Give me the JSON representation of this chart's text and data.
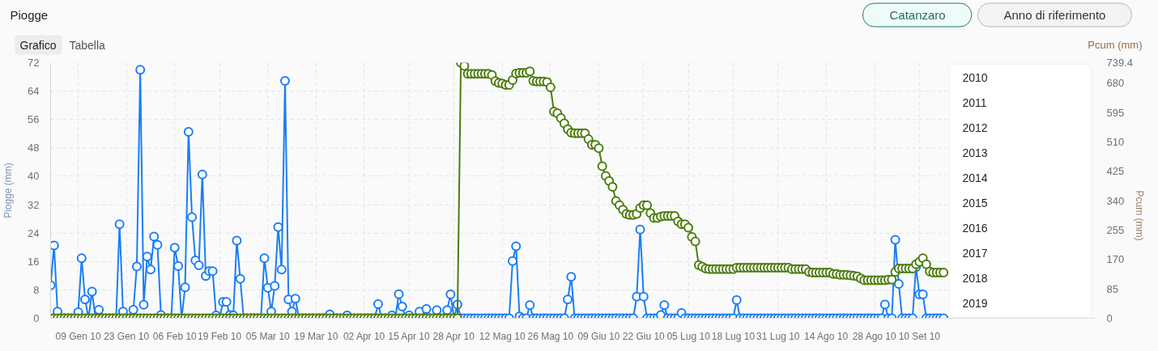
{
  "chart_data": {
    "type": "line",
    "title": "Piogge",
    "ylabel": "Piogge (mm)",
    "y2label": "Pcum (mm)",
    "annotations": [
      "Grafico",
      "Tabella",
      "Catanzaro",
      "Anno di riferimento",
      "2010",
      "2011",
      "2012",
      "2013",
      "2014",
      "2015",
      "2016",
      "2017",
      "2018",
      "2019",
      "Pcum (mm)"
    ],
    "categories": [
      null,
      null,
      null,
      null,
      null,
      null,
      null,
      null,
      "09 Gen 10",
      null,
      null,
      null,
      null,
      null,
      null,
      null,
      null,
      null,
      null,
      null,
      null,
      null,
      "23 Gen 10",
      null,
      null,
      null,
      null,
      null,
      null,
      null,
      null,
      null,
      null,
      null,
      null,
      null,
      "06 Feb 10",
      null,
      null,
      null,
      null,
      null,
      null,
      null,
      null,
      null,
      null,
      null,
      null,
      "19 Feb 10",
      null,
      null,
      null,
      null,
      null,
      null,
      null,
      null,
      null,
      null,
      null,
      null,
      null,
      "05 Mar 10",
      null,
      null,
      null,
      null,
      null,
      null,
      null,
      null,
      null,
      null,
      null,
      null,
      null,
      "19 Mar 10",
      null,
      null,
      null,
      null,
      null,
      null,
      null,
      null,
      null,
      null,
      null,
      null,
      null,
      "02 Apr 10",
      null,
      null,
      null,
      null,
      null,
      null,
      null,
      null,
      null,
      null,
      null,
      null,
      "15 Apr 10",
      null,
      null,
      null,
      null,
      null,
      null,
      null,
      null,
      null,
      null,
      null,
      null,
      "28 Apr 10",
      null,
      null,
      null,
      null,
      null,
      null,
      null,
      null,
      null,
      null,
      null,
      null,
      null,
      "12 Mag 10",
      null,
      null,
      null,
      null,
      null,
      null,
      null,
      null,
      null,
      null,
      null,
      null,
      null,
      "26 Mag 10",
      null,
      null,
      null,
      null,
      null,
      null,
      null,
      null,
      null,
      null,
      null,
      null,
      null,
      "09 Giu 10",
      null,
      null,
      null,
      null,
      null,
      null,
      null,
      null,
      null,
      null,
      null,
      null,
      "22 Giu 10",
      null,
      null,
      null,
      null,
      null,
      null,
      null,
      null,
      null,
      null,
      null,
      null,
      "05 Lug 10",
      null,
      null,
      null,
      null,
      null,
      null,
      null,
      null,
      null,
      null,
      null,
      null,
      "18 Lug 10",
      null,
      null,
      null,
      null,
      null,
      null,
      null,
      null,
      null,
      null,
      null,
      null,
      "31 Lug 10",
      null,
      null,
      null,
      null,
      null,
      null,
      null,
      null,
      null,
      null,
      null,
      null,
      null,
      "14 Ago 10",
      null,
      null,
      null,
      null,
      null,
      null,
      null,
      null,
      null,
      null,
      null,
      null,
      null,
      "28 Ago 10",
      null,
      null,
      null,
      null,
      null,
      null,
      null,
      null,
      null,
      null,
      null,
      null,
      "10 Set 10",
      null,
      null,
      null,
      null,
      null,
      null,
      null,
      null,
      null,
      null,
      null,
      null,
      null,
      null,
      null,
      null,
      null,
      null,
      null,
      null,
      null,
      null,
      null,
      null,
      null,
      null,
      null,
      null,
      null,
      null,
      null,
      null,
      null,
      null,
      null,
      null,
      null,
      null,
      null,
      null,
      null,
      null,
      null,
      null,
      null,
      null,
      null,
      null,
      null,
      null,
      null
    ],
    "series": [
      {
        "color": "#1a7ef5",
        "values": [
          9.3,
          20.5,
          1.9,
          0,
          0,
          0,
          0,
          0,
          1.7,
          16.9,
          5.3,
          0,
          7.5,
          0,
          2.4,
          0,
          0,
          0,
          0,
          0,
          26.5,
          1.9,
          0,
          0,
          2.4,
          14.6,
          70.0,
          3.8,
          17.4,
          13.7,
          23.0,
          20.7,
          0.9,
          0,
          0,
          0,
          19.9,
          14.7,
          0,
          8.7,
          52.5,
          28.5,
          16.3,
          14.9,
          40.5,
          11.9,
          13.3,
          13.3,
          0.8,
          0,
          4.6,
          4.6,
          0.9,
          0.8,
          21.9,
          11.1,
          0,
          0,
          0,
          0,
          0,
          0,
          16.9,
          8.6,
          1.9,
          9.1,
          25.7,
          13.7,
          66.9,
          5.3,
          1.9,
          5.5,
          0,
          0,
          0,
          0,
          0,
          0,
          0,
          0,
          0,
          1.1,
          0,
          0,
          0,
          0,
          0.8,
          0,
          0,
          0,
          0,
          0,
          0,
          0,
          0,
          4.0,
          0,
          0,
          0,
          0.8,
          0,
          6.8,
          3.3,
          0,
          0.8,
          0,
          0,
          1.9,
          0,
          2.6,
          0,
          0,
          2.3,
          0,
          0,
          2.3,
          6.7,
          0,
          3.9,
          0,
          0,
          0,
          0,
          0,
          0,
          0,
          0,
          0,
          0,
          0,
          0,
          0,
          0,
          0,
          16.1,
          20.3,
          0.5,
          0,
          0,
          3.7,
          0,
          0,
          0,
          0,
          0,
          0,
          0,
          0,
          0,
          0,
          5.3,
          11.7,
          0,
          0,
          0,
          0,
          0,
          0,
          0,
          0,
          0,
          0,
          0,
          0,
          0,
          0,
          0,
          0,
          0,
          0,
          6.1,
          25.0,
          6.1,
          0,
          0,
          0,
          0,
          0.9,
          3.7,
          0,
          0,
          0,
          0,
          1.5,
          0,
          0,
          0,
          0,
          0,
          0,
          0,
          0,
          0,
          0,
          0,
          0,
          0,
          0,
          0,
          5.1,
          0,
          0,
          0,
          0,
          0,
          0,
          0,
          0,
          0,
          0,
          0,
          0,
          0,
          0,
          0,
          0,
          0,
          0,
          0,
          0,
          0,
          0,
          0,
          0,
          0,
          0,
          0,
          0,
          0,
          0,
          0,
          0,
          0,
          0,
          0,
          0,
          0,
          0,
          0,
          0,
          0,
          0,
          3.9,
          0,
          0,
          22.1,
          9.7,
          0,
          0,
          0,
          0,
          14.4,
          6.7,
          6.7,
          0,
          0,
          0,
          0,
          0,
          0,
          null,
          null,
          null,
          null,
          null,
          null,
          null,
          null,
          null,
          null,
          null,
          null,
          null,
          null,
          null,
          null,
          null,
          null,
          null,
          null,
          null,
          null,
          null,
          null,
          null,
          null,
          null,
          null,
          null,
          null,
          null,
          null,
          null,
          null,
          null,
          null,
          null,
          null,
          null,
          null,
          null,
          null,
          null,
          null
        ]
      },
      {
        "color": "#4d7c0f",
        "axis": "y2",
        "values": [
          0,
          0,
          0,
          0,
          0,
          0,
          0,
          0,
          0,
          0,
          0,
          0,
          0,
          0,
          0,
          0,
          0,
          0,
          0,
          0,
          0,
          0,
          0,
          0,
          0,
          0,
          0,
          0,
          0,
          0,
          0,
          0,
          0,
          0,
          0,
          0,
          0,
          0,
          0,
          0,
          0,
          0,
          0,
          0,
          0,
          0,
          0,
          0,
          0,
          0,
          0,
          0,
          0,
          0,
          0,
          0,
          0,
          0,
          0,
          0,
          0,
          0,
          0,
          0,
          0,
          0,
          0,
          0,
          0,
          0,
          0,
          0,
          0,
          0,
          0,
          0,
          0,
          0,
          0,
          0,
          0,
          0,
          0,
          0,
          0,
          0,
          0,
          0,
          0,
          0,
          0,
          0,
          0,
          0,
          0,
          0,
          0,
          0,
          0,
          0,
          0,
          0,
          0,
          0,
          0,
          0,
          0,
          0,
          0,
          0,
          0,
          0,
          0,
          0,
          0,
          0,
          0,
          0,
          0,
          739,
          730,
          707,
          707,
          707,
          707,
          707,
          707,
          707,
          704,
          686,
          681,
          679,
          675,
          675,
          689,
          708,
          710,
          710,
          710,
          714,
          687,
          685,
          685,
          685,
          683,
          668,
          598,
          593,
          579,
          564,
          547,
          537,
          535,
          535,
          535,
          535,
          518,
          502,
          502,
          492,
          440,
          412,
          397,
          380,
          339,
          327,
          314,
          302,
          299,
          299,
          302,
          319,
          327,
          327,
          304,
          290,
          290,
          294,
          296,
          296,
          296,
          296,
          280,
          272,
          272,
          262,
          235,
          222,
          154,
          149,
          144,
          142,
          142,
          142,
          142,
          142,
          142,
          142,
          142,
          146,
          146,
          146,
          146,
          146,
          146,
          146,
          146,
          146,
          146,
          146,
          146,
          146,
          146,
          146,
          146,
          142,
          142,
          142,
          142,
          142,
          134,
          132,
          132,
          132,
          132,
          132,
          132,
          128,
          128,
          126,
          126,
          125,
          124,
          123,
          121,
          115,
          110,
          110,
          110,
          110,
          110,
          110,
          110,
          112,
          112,
          134,
          144,
          144,
          144,
          144,
          144,
          156,
          163,
          174,
          156,
          135,
          132,
          132,
          132,
          132,
          null,
          null,
          null,
          null,
          null,
          null,
          null,
          null,
          null,
          null,
          null,
          null,
          null,
          null,
          null,
          null,
          null,
          null,
          null,
          null,
          null,
          null,
          null,
          null,
          null,
          null,
          null,
          null,
          null,
          null,
          null,
          null,
          null,
          null,
          null,
          null,
          null,
          null,
          null,
          null,
          null,
          null,
          null,
          null
        ]
      }
    ],
    "ylim": [
      0,
      72
    ],
    "yticks": [
      0,
      8,
      16,
      24,
      32,
      40,
      48,
      56,
      64,
      72
    ],
    "y2lim": [
      0,
      739.4
    ],
    "y2ticks": [
      0,
      85,
      170,
      255,
      340,
      425,
      510,
      595,
      680,
      739.4
    ],
    "grid": true,
    "marker": "circle",
    "line_style": "solid"
  }
}
